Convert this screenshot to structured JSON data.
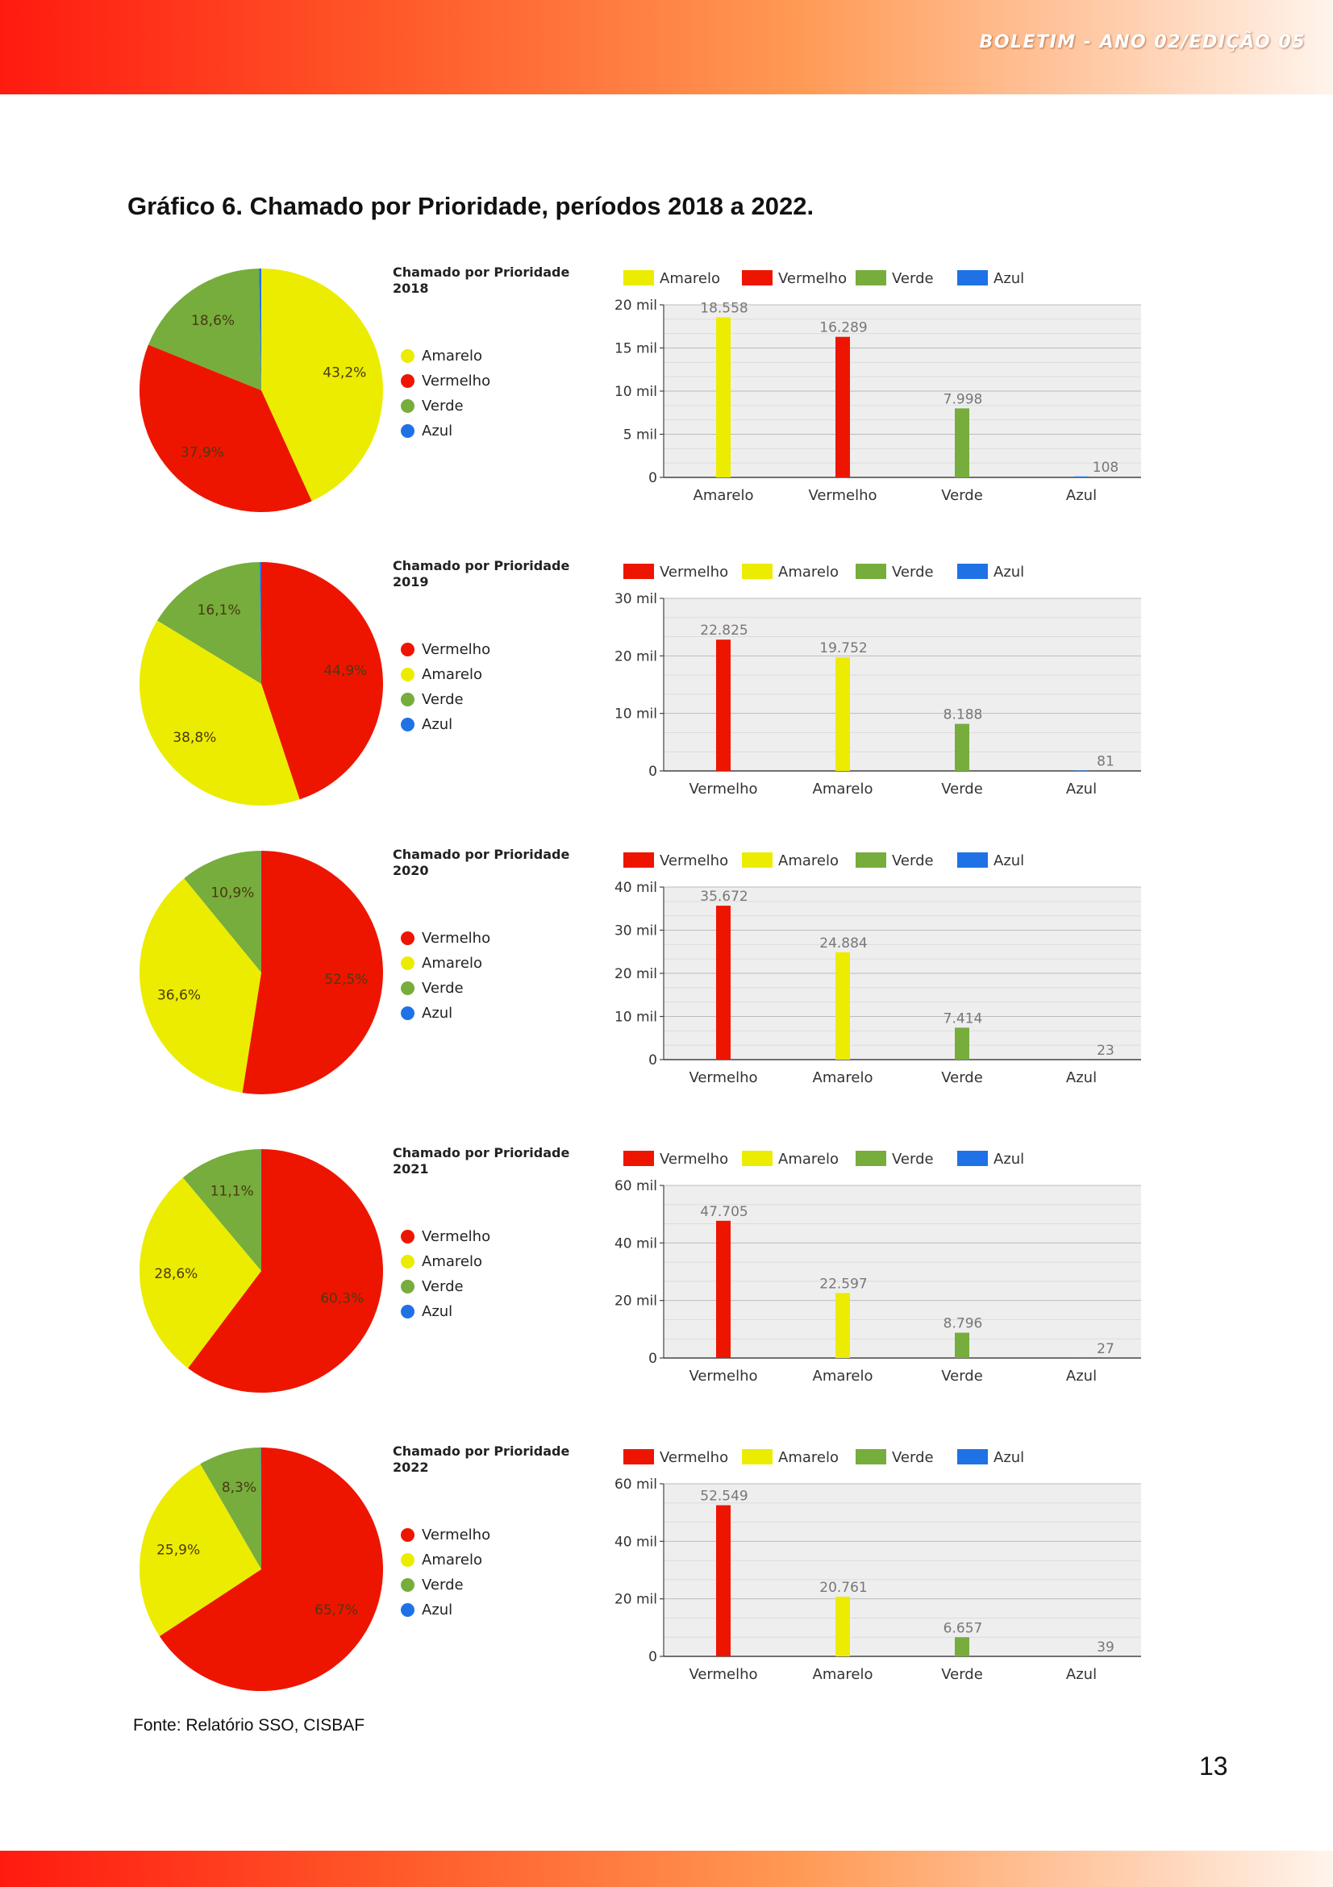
{
  "header": {
    "text": "BOLETIM - ANO 02/EDIÇÃO 05"
  },
  "figure_title": "Gráfico 6. Chamado por Prioridade, períodos 2018 a 2022.",
  "source": "Fonte: Relatório SSO, CISBAF",
  "page_number": "13",
  "colors": {
    "Amarelo": "#ecec00",
    "Vermelho": "#ee1500",
    "Verde": "#76ad3c",
    "Azul": "#1f72e6",
    "plot_bg": "#eeeeee"
  },
  "chart_data": [
    {
      "type": "pie",
      "title_line1": "Chamado por Prioridade",
      "title_line2": "2018",
      "slices": [
        {
          "name": "Amarelo",
          "value": 43.2,
          "label": "43,2%"
        },
        {
          "name": "Vermelho",
          "value": 37.9,
          "label": "37,9%"
        },
        {
          "name": "Verde",
          "value": 18.6,
          "label": "18,6%"
        },
        {
          "name": "Azul",
          "value": 0.3,
          "label": ""
        }
      ],
      "legend": [
        "Amarelo",
        "Vermelho",
        "Verde",
        "Azul"
      ]
    },
    {
      "type": "bar",
      "legend": [
        "Amarelo",
        "Vermelho",
        "Verde",
        "Azul"
      ],
      "categories": [
        "Amarelo",
        "Vermelho",
        "Verde",
        "Azul"
      ],
      "values": [
        18558,
        16289,
        7998,
        108
      ],
      "value_labels": [
        "18.558",
        "16.289",
        "7.998",
        "108"
      ],
      "yticks": [
        0,
        5000,
        10000,
        15000,
        20000
      ],
      "ytick_labels": [
        "0",
        "5 mil",
        "10 mil",
        "15 mil",
        "20 mil"
      ],
      "ylim": [
        0,
        20000
      ]
    },
    {
      "type": "pie",
      "title_line1": "Chamado por Prioridade",
      "title_line2": "2019",
      "slices": [
        {
          "name": "Vermelho",
          "value": 44.9,
          "label": "44,9%"
        },
        {
          "name": "Amarelo",
          "value": 38.8,
          "label": "38,8%"
        },
        {
          "name": "Verde",
          "value": 16.1,
          "label": "16,1%"
        },
        {
          "name": "Azul",
          "value": 0.2,
          "label": ""
        }
      ],
      "legend": [
        "Vermelho",
        "Amarelo",
        "Verde",
        "Azul"
      ]
    },
    {
      "type": "bar",
      "legend": [
        "Vermelho",
        "Amarelo",
        "Verde",
        "Azul"
      ],
      "categories": [
        "Vermelho",
        "Amarelo",
        "Verde",
        "Azul"
      ],
      "values": [
        22825,
        19752,
        8188,
        81
      ],
      "value_labels": [
        "22.825",
        "19.752",
        "8.188",
        "81"
      ],
      "yticks": [
        0,
        10000,
        20000,
        30000
      ],
      "ytick_labels": [
        "0",
        "10 mil",
        "20 mil",
        "30 mil"
      ],
      "ylim": [
        0,
        30000
      ]
    },
    {
      "type": "pie",
      "title_line1": "Chamado por Prioridade",
      "title_line2": "2020",
      "slices": [
        {
          "name": "Vermelho",
          "value": 52.5,
          "label": "52,5%"
        },
        {
          "name": "Amarelo",
          "value": 36.6,
          "label": "36,6%"
        },
        {
          "name": "Verde",
          "value": 10.9,
          "label": "10,9%"
        },
        {
          "name": "Azul",
          "value": 0.03,
          "label": ""
        }
      ],
      "legend": [
        "Vermelho",
        "Amarelo",
        "Verde",
        "Azul"
      ]
    },
    {
      "type": "bar",
      "legend": [
        "Vermelho",
        "Amarelo",
        "Verde",
        "Azul"
      ],
      "categories": [
        "Vermelho",
        "Amarelo",
        "Verde",
        "Azul"
      ],
      "values": [
        35672,
        24884,
        7414,
        23
      ],
      "value_labels": [
        "35.672",
        "24.884",
        "7.414",
        "23"
      ],
      "yticks": [
        0,
        10000,
        20000,
        30000,
        40000
      ],
      "ytick_labels": [
        "0",
        "10 mil",
        "20 mil",
        "30 mil",
        "40 mil"
      ],
      "ylim": [
        0,
        40000
      ]
    },
    {
      "type": "pie",
      "title_line1": "Chamado por Prioridade",
      "title_line2": "2021",
      "slices": [
        {
          "name": "Vermelho",
          "value": 60.3,
          "label": "60,3%"
        },
        {
          "name": "Amarelo",
          "value": 28.6,
          "label": "28,6%"
        },
        {
          "name": "Verde",
          "value": 11.1,
          "label": "11,1%"
        },
        {
          "name": "Azul",
          "value": 0.03,
          "label": ""
        }
      ],
      "legend": [
        "Vermelho",
        "Amarelo",
        "Verde",
        "Azul"
      ]
    },
    {
      "type": "bar",
      "legend": [
        "Vermelho",
        "Amarelo",
        "Verde",
        "Azul"
      ],
      "categories": [
        "Vermelho",
        "Amarelo",
        "Verde",
        "Azul"
      ],
      "values": [
        47705,
        22597,
        8796,
        27
      ],
      "value_labels": [
        "47.705",
        "22.597",
        "8.796",
        "27"
      ],
      "yticks": [
        0,
        20000,
        40000,
        60000
      ],
      "ytick_labels": [
        "0",
        "20 mil",
        "40 mil",
        "60 mil"
      ],
      "ylim": [
        0,
        60000
      ]
    },
    {
      "type": "pie",
      "title_line1": "Chamado por Prioridade",
      "title_line2": "2022",
      "slices": [
        {
          "name": "Vermelho",
          "value": 65.7,
          "label": "65,7%"
        },
        {
          "name": "Amarelo",
          "value": 25.9,
          "label": "25,9%"
        },
        {
          "name": "Verde",
          "value": 8.3,
          "label": "8,3%"
        },
        {
          "name": "Azul",
          "value": 0.05,
          "label": ""
        }
      ],
      "legend": [
        "Vermelho",
        "Amarelo",
        "Verde",
        "Azul"
      ]
    },
    {
      "type": "bar",
      "legend": [
        "Vermelho",
        "Amarelo",
        "Verde",
        "Azul"
      ],
      "categories": [
        "Vermelho",
        "Amarelo",
        "Verde",
        "Azul"
      ],
      "values": [
        52549,
        20761,
        6657,
        39
      ],
      "value_labels": [
        "52.549",
        "20.761",
        "6.657",
        "39"
      ],
      "yticks": [
        0,
        20000,
        40000,
        60000
      ],
      "ytick_labels": [
        "0",
        "20 mil",
        "40 mil",
        "60 mil"
      ],
      "ylim": [
        0,
        60000
      ]
    }
  ]
}
